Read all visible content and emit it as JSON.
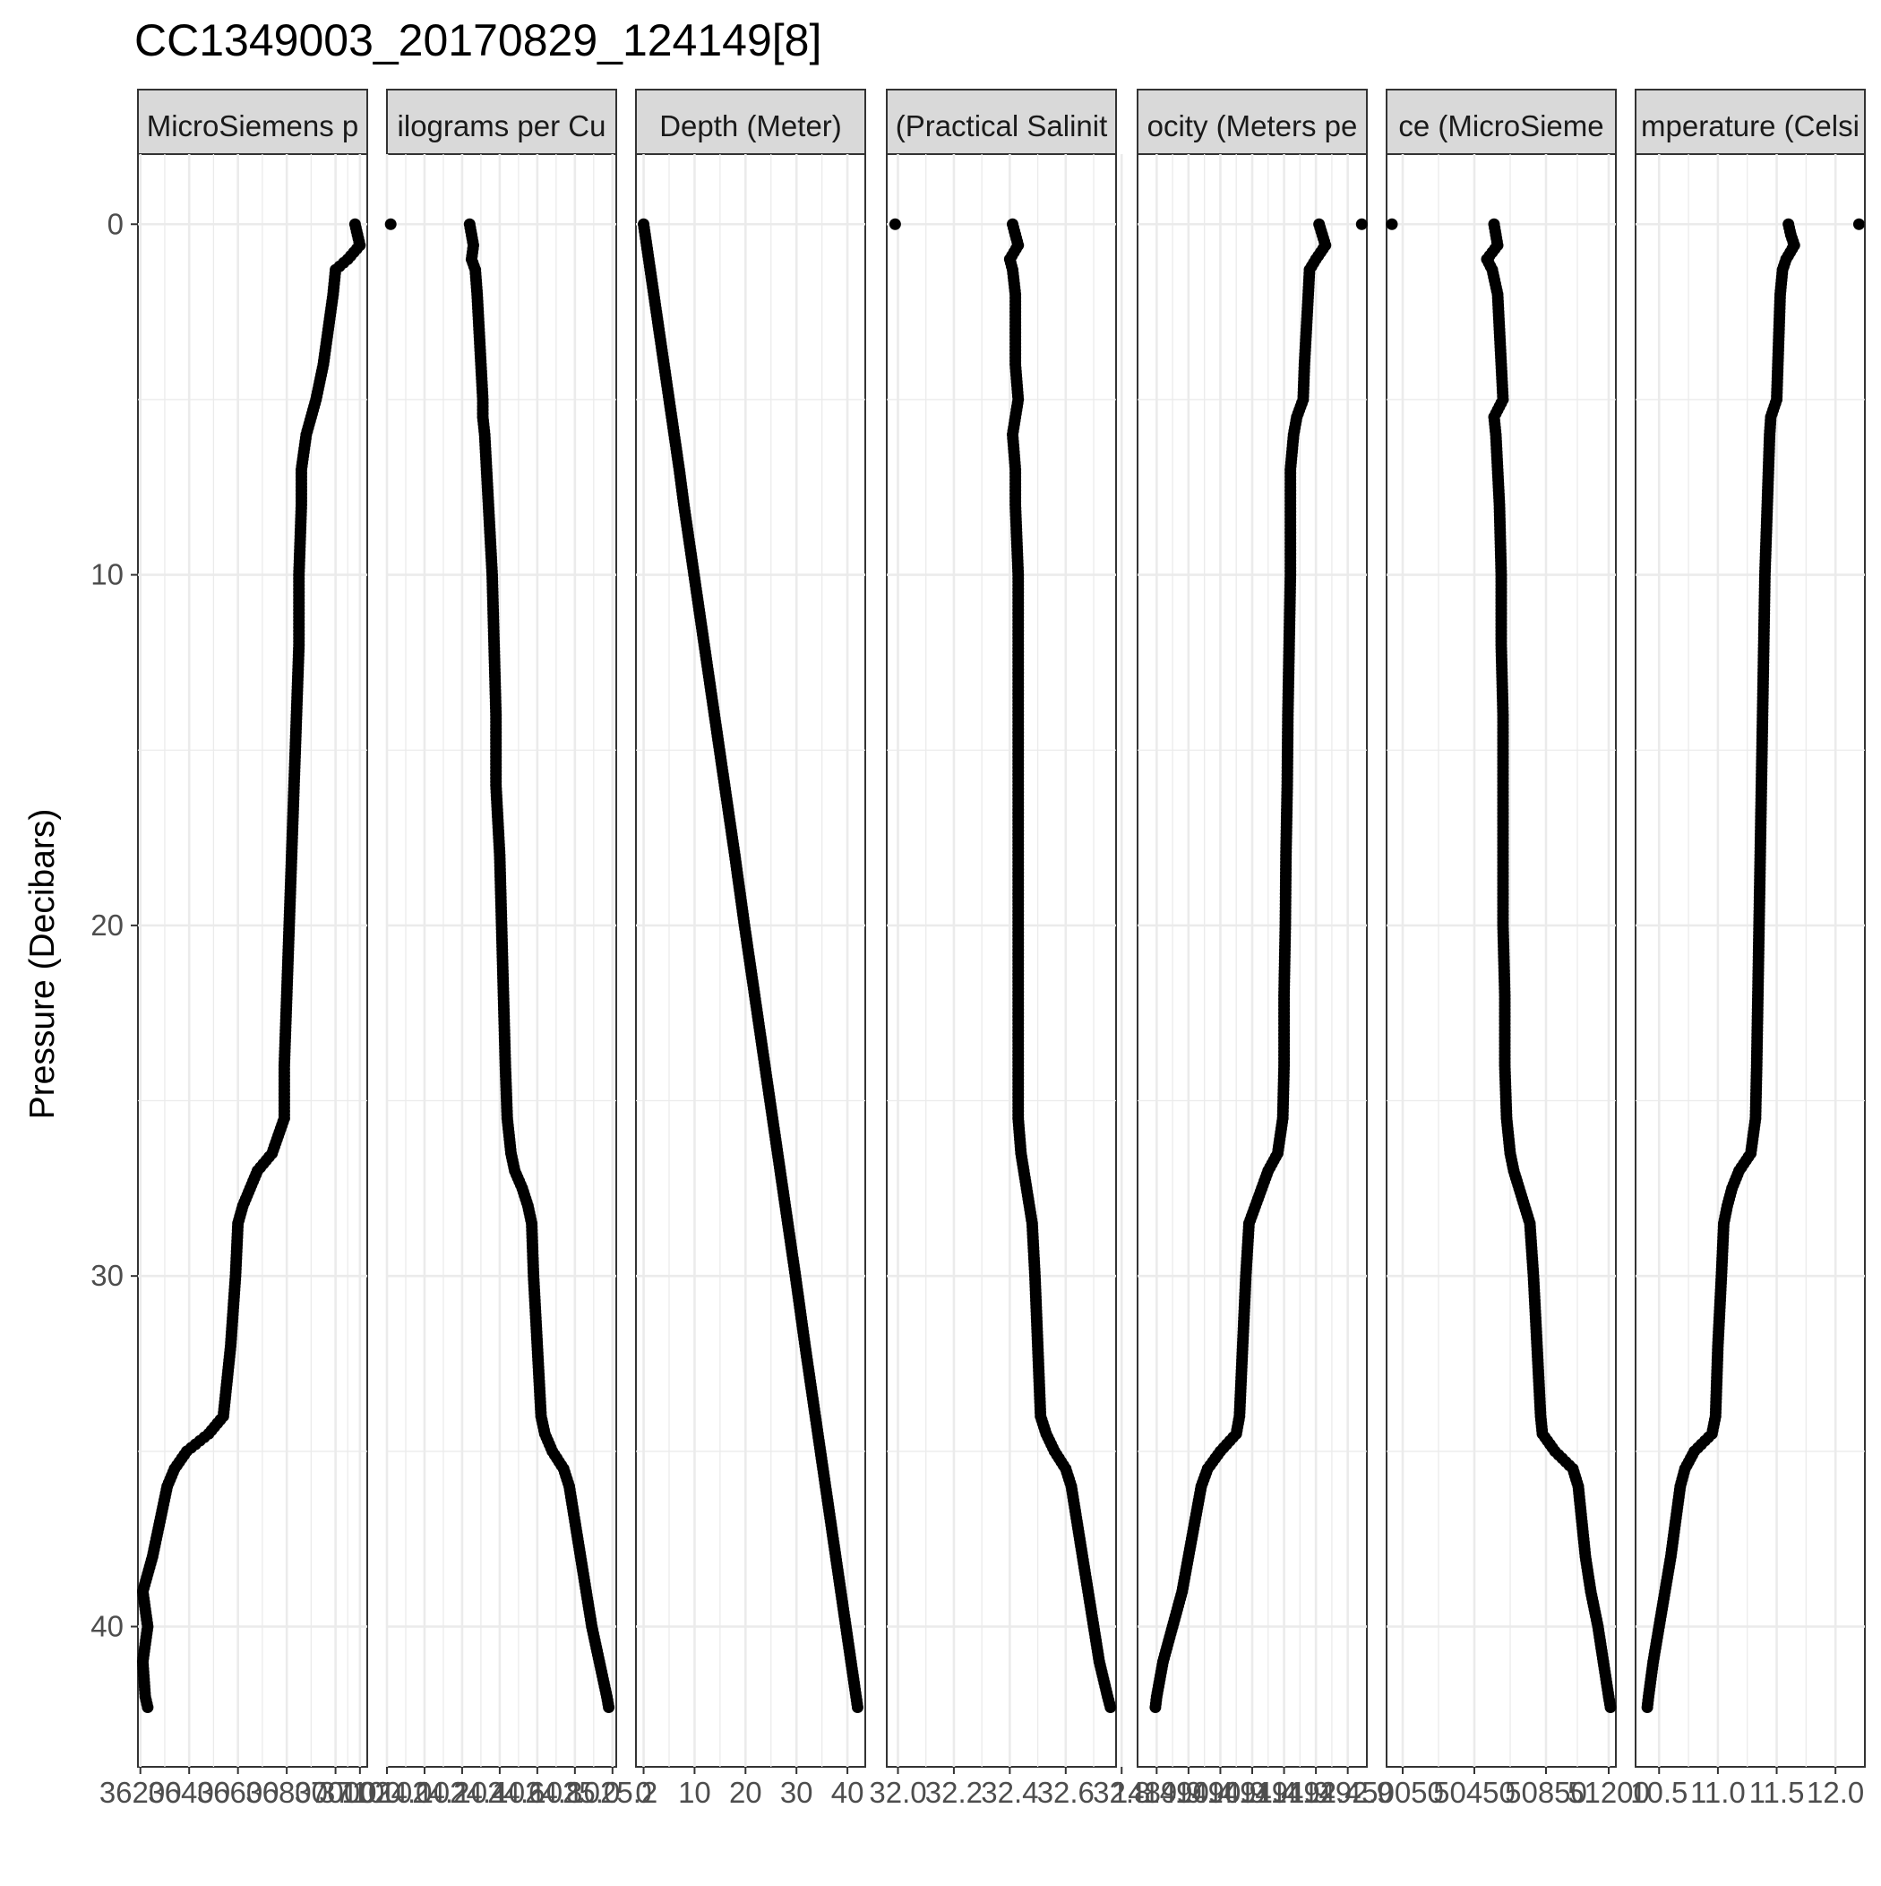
{
  "chart_data": {
    "type": "scatter",
    "title": "CC1349003_20170829_124149[8]",
    "ylabel": "Pressure (Decibars)",
    "y_axis": {
      "range": [
        44,
        -2
      ],
      "reversed": true,
      "ticks": [
        0,
        10,
        20,
        30,
        40
      ],
      "tick_labels": [
        "0",
        "10",
        "20",
        "30",
        "40"
      ]
    },
    "point_color": "#000000",
    "grid": true,
    "pressure_profile": [
      0.0,
      0.3,
      0.6,
      1.0,
      1.3,
      2.0,
      3.0,
      4.0,
      5.0,
      5.5,
      6.0,
      7.0,
      8.0,
      10.0,
      12.0,
      14.0,
      16.0,
      18.0,
      20.0,
      22.0,
      24.0,
      25.5,
      26.5,
      27.0,
      27.5,
      28.0,
      28.5,
      30.0,
      32.0,
      34.0,
      34.5,
      35.0,
      35.5,
      36.0,
      37.0,
      38.0,
      39.0,
      40.0,
      41.0,
      42.0,
      42.3
    ],
    "panels": [
      {
        "strip_label": "MicroSiemens p",
        "xlim": [
          36190,
          37130
        ],
        "x_ticks": [
          36200,
          36400,
          36600,
          36800,
          37000,
          37100
        ],
        "x_tick_labels": [
          "36200",
          "36400",
          "36600",
          "36800",
          "37000",
          "37100"
        ],
        "x": [
          37080,
          37090,
          37100,
          37050,
          37000,
          36990,
          36970,
          36950,
          36920,
          36900,
          36880,
          36860,
          36860,
          36850,
          36850,
          36840,
          36830,
          36820,
          36810,
          36800,
          36790,
          36790,
          36740,
          36680,
          36650,
          36620,
          36600,
          36590,
          36570,
          36540,
          36480,
          36390,
          36340,
          36310,
          36280,
          36250,
          36210,
          36230,
          36210,
          36220,
          36230
        ]
      },
      {
        "strip_label": "ilograms per Cu",
        "xlim": [
          1024.0,
          1025.22
        ],
        "x_ticks": [
          1024.0,
          1024.2,
          1024.4,
          1024.6,
          1024.8,
          1025.0,
          1025.2
        ],
        "x_tick_labels": [
          "1024.0",
          "1024.2",
          "1024.4",
          "1024.6",
          "1024.8",
          "1025.0",
          "1025.2"
        ],
        "x": [
          1024.44,
          1024.45,
          1024.46,
          1024.45,
          1024.47,
          1024.48,
          1024.49,
          1024.5,
          1024.51,
          1024.51,
          1024.52,
          1024.53,
          1024.54,
          1024.56,
          1024.57,
          1024.58,
          1024.58,
          1024.6,
          1024.61,
          1024.62,
          1024.63,
          1024.64,
          1024.66,
          1024.68,
          1024.72,
          1024.75,
          1024.77,
          1024.78,
          1024.8,
          1024.82,
          1024.84,
          1024.88,
          1024.94,
          1024.97,
          1025.0,
          1025.03,
          1025.06,
          1025.09,
          1025.13,
          1025.17,
          1025.18
        ]
      },
      {
        "strip_label": "Depth (Meter)",
        "xlim": [
          -1.5,
          43.5
        ],
        "x_ticks": [
          0,
          10,
          20,
          30,
          40
        ],
        "x_tick_labels": [
          "0",
          "10",
          "20",
          "30",
          "40"
        ],
        "x": [
          0.0,
          0.3,
          0.6,
          1.0,
          1.3,
          2.0,
          3.0,
          4.0,
          5.0,
          5.5,
          6.0,
          7.0,
          7.9,
          9.9,
          11.9,
          13.9,
          15.9,
          17.9,
          19.8,
          21.8,
          23.8,
          25.3,
          26.3,
          26.8,
          27.3,
          27.8,
          28.3,
          29.8,
          31.7,
          33.7,
          34.2,
          34.7,
          35.2,
          35.7,
          36.7,
          37.7,
          38.7,
          39.7,
          40.7,
          41.7,
          42.0
        ]
      },
      {
        "strip_label": "(Practical Salinit",
        "xlim": [
          31.96,
          32.78
        ],
        "x_ticks": [
          32.0,
          32.2,
          32.4,
          32.6,
          32.8
        ],
        "x_tick_labels": [
          "32.0",
          "32.2",
          "32.4",
          "32.6",
          "32.8"
        ],
        "x": [
          32.41,
          32.42,
          32.43,
          32.4,
          32.41,
          32.42,
          32.42,
          32.42,
          32.43,
          32.42,
          32.41,
          32.42,
          32.42,
          32.43,
          32.43,
          32.43,
          32.43,
          32.43,
          32.43,
          32.43,
          32.43,
          32.43,
          32.44,
          32.45,
          32.46,
          32.47,
          32.48,
          32.49,
          32.5,
          32.51,
          32.53,
          32.56,
          32.6,
          32.62,
          32.64,
          32.66,
          32.68,
          32.7,
          32.72,
          32.75,
          32.76
        ]
      },
      {
        "strip_label": "ocity (Meters pe",
        "xlim": [
          1489.6,
          1493.2
        ],
        "x_ticks": [
          1489.9,
          1490.4,
          1490.9,
          1491.4,
          1491.9,
          1492.4,
          1492.9
        ],
        "x_tick_labels": [
          "1489.9",
          "1490.4",
          "1490.9",
          "1491.4",
          "1491.9",
          "1492.4",
          "1492.9"
        ],
        "x": [
          1492.45,
          1492.5,
          1492.55,
          1492.4,
          1492.3,
          1492.28,
          1492.25,
          1492.22,
          1492.2,
          1492.1,
          1492.05,
          1492.0,
          1492.0,
          1492.0,
          1491.98,
          1491.96,
          1491.95,
          1491.93,
          1491.92,
          1491.9,
          1491.9,
          1491.88,
          1491.8,
          1491.65,
          1491.55,
          1491.45,
          1491.35,
          1491.3,
          1491.25,
          1491.2,
          1491.15,
          1490.9,
          1490.7,
          1490.6,
          1490.5,
          1490.4,
          1490.3,
          1490.15,
          1490.0,
          1489.9,
          1489.88
        ]
      },
      {
        "strip_label": "ce (MicroSieme",
        "xlim": [
          49960,
          51240
        ],
        "x_ticks": [
          50050,
          50450,
          50850,
          51200
        ],
        "x_tick_labels": [
          "50050",
          "50450",
          "50850",
          "51200"
        ],
        "x": [
          50560,
          50570,
          50580,
          50520,
          50550,
          50580,
          50590,
          50600,
          50610,
          50560,
          50570,
          50580,
          50590,
          50600,
          50600,
          50610,
          50610,
          50610,
          50610,
          50620,
          50620,
          50630,
          50650,
          50670,
          50700,
          50730,
          50760,
          50780,
          50800,
          50820,
          50830,
          50900,
          51000,
          51030,
          51050,
          51070,
          51100,
          51140,
          51170,
          51200,
          51210
        ]
      },
      {
        "strip_label": "mperature (Celsi",
        "xlim": [
          10.3,
          12.25
        ],
        "x_ticks": [
          10.5,
          11.0,
          11.5,
          12.0
        ],
        "x_tick_labels": [
          "10.5",
          "11.0",
          "11.5",
          "12.0"
        ],
        "x": [
          11.6,
          11.62,
          11.65,
          11.58,
          11.55,
          11.53,
          11.52,
          11.51,
          11.5,
          11.45,
          11.44,
          11.43,
          11.42,
          11.4,
          11.39,
          11.38,
          11.37,
          11.36,
          11.35,
          11.34,
          11.33,
          11.32,
          11.28,
          11.18,
          11.12,
          11.08,
          11.05,
          11.03,
          11.0,
          10.98,
          10.95,
          10.8,
          10.72,
          10.68,
          10.64,
          10.6,
          10.55,
          10.5,
          10.45,
          10.41,
          10.4
        ]
      }
    ],
    "outliers": [
      {
        "panel": 1,
        "x": 1024.02,
        "y": 0.0
      },
      {
        "panel": 3,
        "x": 31.99,
        "y": 0.0
      },
      {
        "panel": 4,
        "x": 1493.12,
        "y": 0.0
      },
      {
        "panel": 5,
        "x": 49990,
        "y": 0.0
      },
      {
        "panel": 6,
        "x": 12.2,
        "y": 0.0
      }
    ]
  }
}
